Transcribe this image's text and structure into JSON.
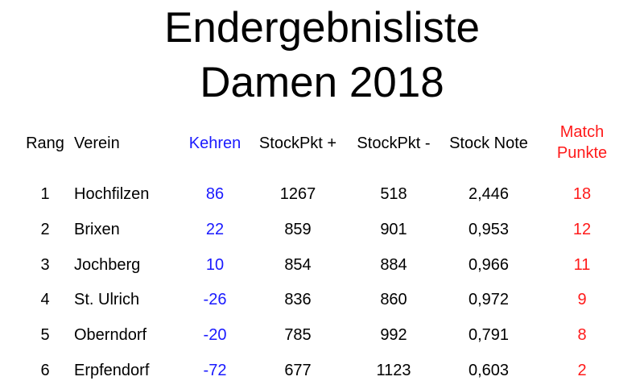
{
  "title": {
    "line1": "Endergebnisliste",
    "line2": "Damen 2018"
  },
  "headers": {
    "rang": "Rang",
    "verein": "Verein",
    "kehren": "Kehren",
    "stockpkt_plus": "StockPkt +",
    "stockpkt_minus": "StockPkt -",
    "stock_note": "Stock Note",
    "match_line1": "Match",
    "match_line2": "Punkte"
  },
  "colors": {
    "kehren": "#1a1aff",
    "match": "#ff1a1a"
  },
  "rows": [
    {
      "rang": "1",
      "verein": "Hochfilzen",
      "kehren": "86",
      "plus": "1267",
      "minus": "518",
      "note": "2,446",
      "match": "18"
    },
    {
      "rang": "2",
      "verein": "Brixen",
      "kehren": "22",
      "plus": "859",
      "minus": "901",
      "note": "0,953",
      "match": "12"
    },
    {
      "rang": "3",
      "verein": "Jochberg",
      "kehren": "10",
      "plus": "854",
      "minus": "884",
      "note": "0,966",
      "match": "11"
    },
    {
      "rang": "4",
      "verein": "St. Ulrich",
      "kehren": "-26",
      "plus": "836",
      "minus": "860",
      "note": "0,972",
      "match": "9"
    },
    {
      "rang": "5",
      "verein": "Oberndorf",
      "kehren": "-20",
      "plus": "785",
      "minus": "992",
      "note": "0,791",
      "match": "8"
    },
    {
      "rang": "6",
      "verein": "Erpfendorf",
      "kehren": "-72",
      "plus": "677",
      "minus": "1123",
      "note": "0,603",
      "match": "2"
    }
  ]
}
